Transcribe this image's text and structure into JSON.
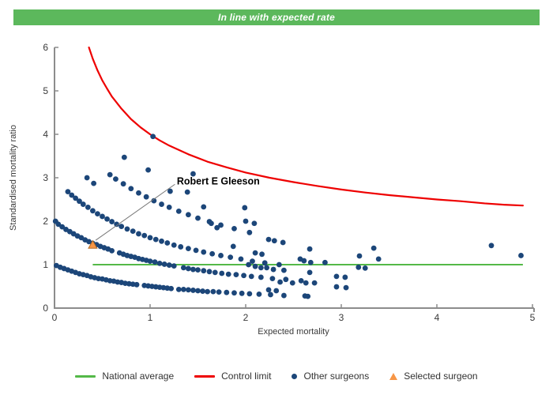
{
  "banner": {
    "text": "In line with expected rate",
    "bg_color": "#5cb85c",
    "text_color": "#ffffff"
  },
  "chart_data": {
    "type": "scatter",
    "title": "",
    "xlabel": "Expected mortality",
    "ylabel": "Standardised mortality ratio",
    "xlim": [
      0,
      5
    ],
    "ylim": [
      0,
      6
    ],
    "x_ticks": [
      0,
      1,
      2,
      3,
      4,
      5
    ],
    "y_ticks": [
      0,
      1,
      2,
      3,
      4,
      5,
      6
    ],
    "grid": false,
    "legend_position": "bottom",
    "axis_color": "#8c8c8c",
    "tick_label_color": "#3a3a3a",
    "national_average": {
      "y": 1.0,
      "x_start": 0.4,
      "x_end": 4.9,
      "color": "#54b948"
    },
    "control_limit": {
      "color": "#ee0000",
      "points": [
        [
          0.36,
          6.0
        ],
        [
          0.4,
          5.74
        ],
        [
          0.45,
          5.47
        ],
        [
          0.5,
          5.24
        ],
        [
          0.55,
          5.05
        ],
        [
          0.6,
          4.87
        ],
        [
          0.7,
          4.59
        ],
        [
          0.8,
          4.35
        ],
        [
          0.9,
          4.16
        ],
        [
          1.0,
          4.0
        ],
        [
          1.1,
          3.86
        ],
        [
          1.2,
          3.74
        ],
        [
          1.4,
          3.54
        ],
        [
          1.6,
          3.37
        ],
        [
          1.8,
          3.24
        ],
        [
          2.0,
          3.12
        ],
        [
          2.25,
          3.0
        ],
        [
          2.5,
          2.9
        ],
        [
          2.75,
          2.81
        ],
        [
          3.0,
          2.73
        ],
        [
          3.25,
          2.66
        ],
        [
          3.5,
          2.6
        ],
        [
          3.75,
          2.55
        ],
        [
          4.0,
          2.5
        ],
        [
          4.25,
          2.46
        ],
        [
          4.5,
          2.41
        ],
        [
          4.7,
          2.38
        ],
        [
          4.9,
          2.36
        ]
      ]
    },
    "other_surgeons": {
      "color": "#1c4679",
      "points": [
        [
          0.02,
          0.98
        ],
        [
          0.06,
          0.94
        ],
        [
          0.1,
          0.91
        ],
        [
          0.14,
          0.88
        ],
        [
          0.18,
          0.85
        ],
        [
          0.22,
          0.82
        ],
        [
          0.26,
          0.79
        ],
        [
          0.3,
          0.77
        ],
        [
          0.34,
          0.75
        ],
        [
          0.38,
          0.72
        ],
        [
          0.42,
          0.7
        ],
        [
          0.46,
          0.68
        ],
        [
          0.5,
          0.67
        ],
        [
          0.54,
          0.65
        ],
        [
          0.58,
          0.63
        ],
        [
          0.62,
          0.62
        ],
        [
          0.66,
          0.6
        ],
        [
          0.7,
          0.59
        ],
        [
          0.74,
          0.57
        ],
        [
          0.78,
          0.56
        ],
        [
          0.82,
          0.55
        ],
        [
          0.86,
          0.54
        ],
        [
          0.94,
          0.52
        ],
        [
          0.98,
          0.51
        ],
        [
          1.02,
          0.5
        ],
        [
          1.06,
          0.49
        ],
        [
          1.1,
          0.48
        ],
        [
          1.14,
          0.47
        ],
        [
          1.18,
          0.46
        ],
        [
          1.22,
          0.45
        ],
        [
          1.3,
          0.43
        ],
        [
          1.35,
          0.43
        ],
        [
          1.4,
          0.42
        ],
        [
          1.45,
          0.41
        ],
        [
          1.5,
          0.4
        ],
        [
          1.55,
          0.39
        ],
        [
          1.6,
          0.38
        ],
        [
          1.66,
          0.38
        ],
        [
          1.72,
          0.37
        ],
        [
          1.8,
          0.36
        ],
        [
          1.88,
          0.35
        ],
        [
          1.96,
          0.34
        ],
        [
          2.04,
          0.33
        ],
        [
          2.14,
          0.32
        ],
        [
          2.26,
          0.31
        ],
        [
          2.4,
          0.29
        ],
        [
          2.62,
          0.28
        ],
        [
          0.01,
          2.0
        ],
        [
          0.04,
          1.93
        ],
        [
          0.08,
          1.87
        ],
        [
          0.12,
          1.81
        ],
        [
          0.16,
          1.76
        ],
        [
          0.2,
          1.71
        ],
        [
          0.24,
          1.66
        ],
        [
          0.28,
          1.62
        ],
        [
          0.32,
          1.57
        ],
        [
          0.36,
          1.53
        ],
        [
          0.4,
          1.49
        ],
        [
          0.44,
          1.46
        ],
        [
          0.48,
          1.42
        ],
        [
          0.52,
          1.39
        ],
        [
          0.56,
          1.36
        ],
        [
          0.6,
          1.32
        ],
        [
          0.68,
          1.27
        ],
        [
          0.72,
          1.24
        ],
        [
          0.76,
          1.21
        ],
        [
          0.8,
          1.19
        ],
        [
          0.84,
          1.17
        ],
        [
          0.88,
          1.14
        ],
        [
          0.92,
          1.12
        ],
        [
          0.96,
          1.1
        ],
        [
          1.0,
          1.08
        ],
        [
          1.05,
          1.06
        ],
        [
          1.1,
          1.03
        ],
        [
          1.15,
          1.01
        ],
        [
          1.2,
          0.99
        ],
        [
          1.25,
          0.97
        ],
        [
          1.35,
          0.93
        ],
        [
          1.4,
          0.91
        ],
        [
          1.45,
          0.89
        ],
        [
          1.5,
          0.88
        ],
        [
          1.56,
          0.86
        ],
        [
          1.62,
          0.84
        ],
        [
          1.68,
          0.82
        ],
        [
          1.75,
          0.8
        ],
        [
          1.82,
          0.78
        ],
        [
          1.9,
          0.77
        ],
        [
          1.98,
          0.75
        ],
        [
          2.06,
          0.73
        ],
        [
          2.16,
          0.71
        ],
        [
          2.28,
          0.68
        ],
        [
          2.42,
          0.66
        ],
        [
          2.58,
          0.63
        ],
        [
          0.14,
          2.68
        ],
        [
          0.18,
          2.6
        ],
        [
          0.22,
          2.53
        ],
        [
          0.26,
          2.46
        ],
        [
          0.3,
          2.39
        ],
        [
          0.35,
          2.32
        ],
        [
          0.4,
          2.24
        ],
        [
          0.45,
          2.17
        ],
        [
          0.5,
          2.11
        ],
        [
          0.55,
          2.05
        ],
        [
          0.6,
          1.99
        ],
        [
          0.65,
          1.93
        ],
        [
          0.7,
          1.88
        ],
        [
          0.76,
          1.82
        ],
        [
          0.82,
          1.77
        ],
        [
          0.88,
          1.71
        ],
        [
          0.94,
          1.67
        ],
        [
          1.0,
          1.62
        ],
        [
          1.06,
          1.58
        ],
        [
          1.12,
          1.54
        ],
        [
          1.18,
          1.5
        ],
        [
          1.25,
          1.45
        ],
        [
          1.32,
          1.41
        ],
        [
          1.4,
          1.37
        ],
        [
          1.48,
          1.33
        ],
        [
          1.56,
          1.29
        ],
        [
          1.65,
          1.25
        ],
        [
          1.74,
          1.21
        ],
        [
          1.84,
          1.17
        ],
        [
          1.95,
          1.13
        ],
        [
          2.07,
          1.08
        ],
        [
          2.2,
          1.04
        ],
        [
          2.35,
          1.0
        ],
        [
          0.58,
          3.07
        ],
        [
          0.64,
          2.97
        ],
        [
          0.72,
          2.86
        ],
        [
          0.8,
          2.75
        ],
        [
          0.88,
          2.65
        ],
        [
          0.96,
          2.56
        ],
        [
          1.04,
          2.47
        ],
        [
          1.12,
          2.39
        ],
        [
          1.2,
          2.32
        ],
        [
          1.3,
          2.23
        ],
        [
          1.4,
          2.15
        ],
        [
          1.5,
          2.07
        ],
        [
          1.62,
          1.99
        ],
        [
          1.74,
          1.91
        ],
        [
          1.88,
          1.83
        ],
        [
          2.04,
          1.74
        ],
        [
          0.34,
          3.0
        ],
        [
          0.41,
          2.87
        ],
        [
          0.73,
          3.47
        ],
        [
          1.03,
          3.95
        ],
        [
          0.98,
          3.18
        ],
        [
          1.45,
          3.09
        ],
        [
          1.21,
          2.69
        ],
        [
          1.39,
          2.67
        ],
        [
          1.56,
          2.33
        ],
        [
          1.99,
          2.31
        ],
        [
          1.64,
          1.95
        ],
        [
          1.7,
          1.85
        ],
        [
          2.0,
          2.0
        ],
        [
          2.09,
          1.95
        ],
        [
          1.87,
          1.42
        ],
        [
          2.1,
          1.27
        ],
        [
          2.17,
          1.24
        ],
        [
          2.24,
          1.58
        ],
        [
          2.3,
          1.55
        ],
        [
          2.39,
          1.51
        ],
        [
          2.03,
          1.0
        ],
        [
          2.1,
          0.96
        ],
        [
          2.16,
          0.93
        ],
        [
          2.22,
          0.93
        ],
        [
          2.29,
          0.89
        ],
        [
          2.4,
          0.87
        ],
        [
          2.36,
          0.6
        ],
        [
          2.49,
          0.58
        ],
        [
          2.24,
          0.42
        ],
        [
          2.32,
          0.4
        ],
        [
          2.57,
          1.13
        ],
        [
          2.61,
          1.09
        ],
        [
          2.67,
          1.36
        ],
        [
          2.68,
          1.05
        ],
        [
          2.83,
          1.05
        ],
        [
          2.67,
          0.82
        ],
        [
          2.63,
          0.58
        ],
        [
          2.72,
          0.58
        ],
        [
          2.65,
          0.27
        ],
        [
          2.95,
          0.73
        ],
        [
          3.04,
          0.71
        ],
        [
          2.95,
          0.49
        ],
        [
          3.05,
          0.47
        ],
        [
          3.18,
          0.94
        ],
        [
          3.25,
          0.92
        ],
        [
          3.19,
          1.2
        ],
        [
          3.34,
          1.38
        ],
        [
          3.39,
          1.13
        ],
        [
          4.57,
          1.44
        ],
        [
          4.88,
          1.21
        ]
      ]
    },
    "selected_surgeon": {
      "label": "Robert E Gleeson",
      "x": 0.4,
      "y": 1.45,
      "fill": "#f79646",
      "border": "#b36b24"
    },
    "annotation": {
      "text": "Robert E Gleeson",
      "text_x": 1.28,
      "text_y": 2.92,
      "leader_from": [
        0.43,
        1.56
      ],
      "leader_to": [
        1.26,
        2.85
      ],
      "text_color": "#000000",
      "leader_color": "#777777"
    }
  },
  "legend": {
    "items": [
      {
        "label": "National average",
        "type": "line",
        "color": "#54b948"
      },
      {
        "label": "Control limit",
        "type": "line",
        "color": "#ee0000"
      },
      {
        "label": "Other surgeons",
        "type": "dot",
        "color": "#1c4679"
      },
      {
        "label": "Selected surgeon",
        "type": "triangle",
        "color": "#f79646"
      }
    ]
  }
}
